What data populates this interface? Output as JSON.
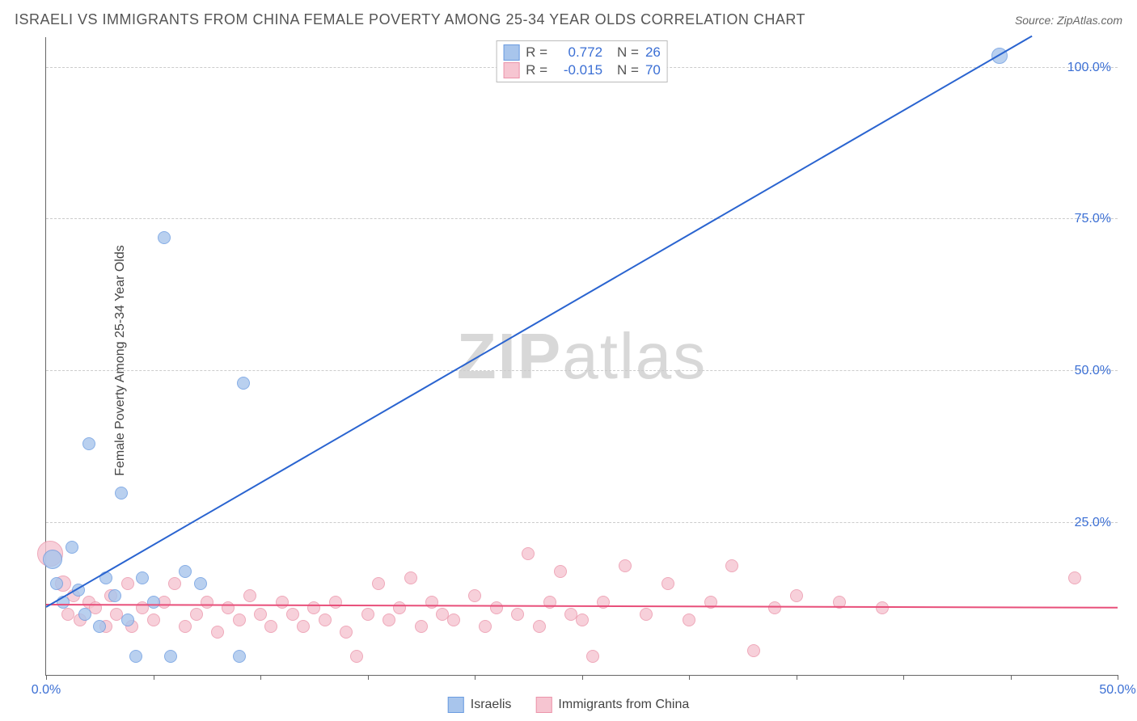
{
  "title": "ISRAELI VS IMMIGRANTS FROM CHINA FEMALE POVERTY AMONG 25-34 YEAR OLDS CORRELATION CHART",
  "source": "Source: ZipAtlas.com",
  "ylabel": "Female Poverty Among 25-34 Year Olds",
  "watermark_zip": "ZIP",
  "watermark_atlas": "atlas",
  "chart": {
    "type": "scatter",
    "xlim": [
      0,
      50
    ],
    "ylim": [
      0,
      105
    ],
    "y_ticks": [
      25,
      50,
      75,
      100
    ],
    "y_tick_labels": [
      "25.0%",
      "50.0%",
      "75.0%",
      "100.0%"
    ],
    "x_ticks": [
      0,
      5,
      10,
      15,
      20,
      25,
      30,
      35,
      40,
      45,
      50
    ],
    "x_tick_labels_shown": {
      "0": "0.0%",
      "50": "50.0%"
    },
    "background_color": "#ffffff",
    "grid_color": "#cccccc",
    "axis_color": "#666666",
    "tick_label_color": "#3b6fd4",
    "series": {
      "israelis": {
        "label": "Israelis",
        "color_fill": "#a8c5ec",
        "color_stroke": "#6a9be0",
        "trend_color": "#2a64d0",
        "trend_width": 2,
        "r_label": "R =",
        "r_value": "0.772",
        "n_label": "N =",
        "n_value": "26",
        "marker_radius": 8,
        "trend_line": {
          "x1": 0,
          "y1": 11,
          "x2": 46,
          "y2": 105
        },
        "points": [
          {
            "x": 0.3,
            "y": 19,
            "r": 12
          },
          {
            "x": 0.5,
            "y": 15,
            "r": 8
          },
          {
            "x": 0.8,
            "y": 12,
            "r": 8
          },
          {
            "x": 1.2,
            "y": 21,
            "r": 8
          },
          {
            "x": 1.5,
            "y": 14,
            "r": 8
          },
          {
            "x": 1.8,
            "y": 10,
            "r": 8
          },
          {
            "x": 2.0,
            "y": 38,
            "r": 8
          },
          {
            "x": 2.5,
            "y": 8,
            "r": 8
          },
          {
            "x": 2.8,
            "y": 16,
            "r": 8
          },
          {
            "x": 3.2,
            "y": 13,
            "r": 8
          },
          {
            "x": 3.5,
            "y": 30,
            "r": 8
          },
          {
            "x": 3.8,
            "y": 9,
            "r": 8
          },
          {
            "x": 4.2,
            "y": 3,
            "r": 8
          },
          {
            "x": 4.5,
            "y": 16,
            "r": 8
          },
          {
            "x": 5.0,
            "y": 12,
            "r": 8
          },
          {
            "x": 5.5,
            "y": 72,
            "r": 8
          },
          {
            "x": 5.8,
            "y": 3,
            "r": 8
          },
          {
            "x": 6.5,
            "y": 17,
            "r": 8
          },
          {
            "x": 7.2,
            "y": 15,
            "r": 8
          },
          {
            "x": 9.0,
            "y": 3,
            "r": 8
          },
          {
            "x": 9.2,
            "y": 48,
            "r": 8
          },
          {
            "x": 44.5,
            "y": 102,
            "r": 10
          }
        ]
      },
      "china": {
        "label": "Immigrants from China",
        "color_fill": "#f6c5d1",
        "color_stroke": "#eb94aa",
        "trend_color": "#e84f7a",
        "trend_width": 2,
        "r_label": "R =",
        "r_value": "-0.015",
        "n_label": "N =",
        "n_value": "70",
        "marker_radius": 8,
        "trend_line": {
          "x1": 0,
          "y1": 11.5,
          "x2": 50,
          "y2": 11
        },
        "points": [
          {
            "x": 0.2,
            "y": 20,
            "r": 16
          },
          {
            "x": 0.8,
            "y": 15,
            "r": 10
          },
          {
            "x": 1.0,
            "y": 10,
            "r": 8
          },
          {
            "x": 1.3,
            "y": 13,
            "r": 8
          },
          {
            "x": 1.6,
            "y": 9,
            "r": 8
          },
          {
            "x": 2.0,
            "y": 12,
            "r": 8
          },
          {
            "x": 2.3,
            "y": 11,
            "r": 8
          },
          {
            "x": 2.8,
            "y": 8,
            "r": 8
          },
          {
            "x": 3.0,
            "y": 13,
            "r": 8
          },
          {
            "x": 3.3,
            "y": 10,
            "r": 8
          },
          {
            "x": 3.8,
            "y": 15,
            "r": 8
          },
          {
            "x": 4.0,
            "y": 8,
            "r": 8
          },
          {
            "x": 4.5,
            "y": 11,
            "r": 8
          },
          {
            "x": 5.0,
            "y": 9,
            "r": 8
          },
          {
            "x": 5.5,
            "y": 12,
            "r": 8
          },
          {
            "x": 6.0,
            "y": 15,
            "r": 8
          },
          {
            "x": 6.5,
            "y": 8,
            "r": 8
          },
          {
            "x": 7.0,
            "y": 10,
            "r": 8
          },
          {
            "x": 7.5,
            "y": 12,
            "r": 8
          },
          {
            "x": 8.0,
            "y": 7,
            "r": 8
          },
          {
            "x": 8.5,
            "y": 11,
            "r": 8
          },
          {
            "x": 9.0,
            "y": 9,
            "r": 8
          },
          {
            "x": 9.5,
            "y": 13,
            "r": 8
          },
          {
            "x": 10.0,
            "y": 10,
            "r": 8
          },
          {
            "x": 10.5,
            "y": 8,
            "r": 8
          },
          {
            "x": 11.0,
            "y": 12,
            "r": 8
          },
          {
            "x": 11.5,
            "y": 10,
            "r": 8
          },
          {
            "x": 12.0,
            "y": 8,
            "r": 8
          },
          {
            "x": 12.5,
            "y": 11,
            "r": 8
          },
          {
            "x": 13.0,
            "y": 9,
            "r": 8
          },
          {
            "x": 13.5,
            "y": 12,
            "r": 8
          },
          {
            "x": 14.0,
            "y": 7,
            "r": 8
          },
          {
            "x": 14.5,
            "y": 3,
            "r": 8
          },
          {
            "x": 15.0,
            "y": 10,
            "r": 8
          },
          {
            "x": 15.5,
            "y": 15,
            "r": 8
          },
          {
            "x": 16.0,
            "y": 9,
            "r": 8
          },
          {
            "x": 16.5,
            "y": 11,
            "r": 8
          },
          {
            "x": 17.0,
            "y": 16,
            "r": 8
          },
          {
            "x": 17.5,
            "y": 8,
            "r": 8
          },
          {
            "x": 18.0,
            "y": 12,
            "r": 8
          },
          {
            "x": 18.5,
            "y": 10,
            "r": 8
          },
          {
            "x": 19.0,
            "y": 9,
            "r": 8
          },
          {
            "x": 20.0,
            "y": 13,
            "r": 8
          },
          {
            "x": 20.5,
            "y": 8,
            "r": 8
          },
          {
            "x": 21.0,
            "y": 11,
            "r": 8
          },
          {
            "x": 22.0,
            "y": 10,
            "r": 8
          },
          {
            "x": 22.5,
            "y": 20,
            "r": 8
          },
          {
            "x": 23.0,
            "y": 8,
            "r": 8
          },
          {
            "x": 23.5,
            "y": 12,
            "r": 8
          },
          {
            "x": 24.0,
            "y": 17,
            "r": 8
          },
          {
            "x": 24.5,
            "y": 10,
            "r": 8
          },
          {
            "x": 25.0,
            "y": 9,
            "r": 8
          },
          {
            "x": 25.5,
            "y": 3,
            "r": 8
          },
          {
            "x": 26.0,
            "y": 12,
            "r": 8
          },
          {
            "x": 27.0,
            "y": 18,
            "r": 8
          },
          {
            "x": 28.0,
            "y": 10,
            "r": 8
          },
          {
            "x": 29.0,
            "y": 15,
            "r": 8
          },
          {
            "x": 30.0,
            "y": 9,
            "r": 8
          },
          {
            "x": 31.0,
            "y": 12,
            "r": 8
          },
          {
            "x": 32.0,
            "y": 18,
            "r": 8
          },
          {
            "x": 33.0,
            "y": 4,
            "r": 8
          },
          {
            "x": 34.0,
            "y": 11,
            "r": 8
          },
          {
            "x": 35.0,
            "y": 13,
            "r": 8
          },
          {
            "x": 37.0,
            "y": 12,
            "r": 8
          },
          {
            "x": 39.0,
            "y": 11,
            "r": 8
          },
          {
            "x": 48.0,
            "y": 16,
            "r": 8
          }
        ]
      }
    }
  }
}
